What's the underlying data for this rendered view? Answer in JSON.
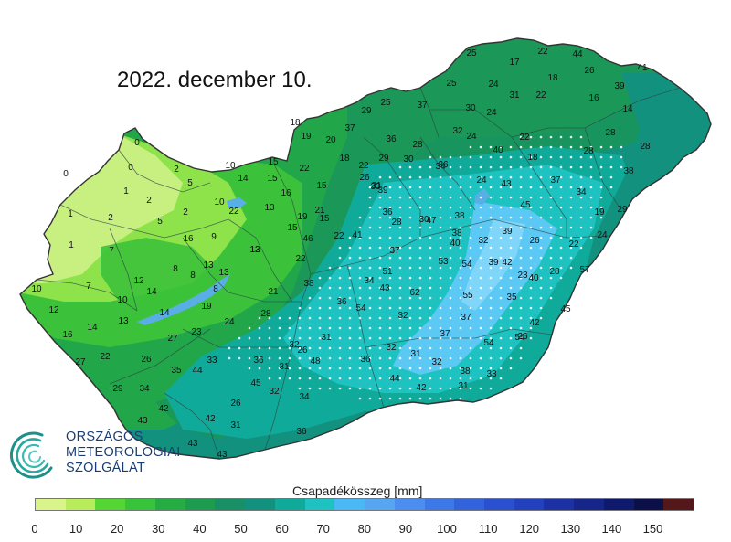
{
  "title": "2022. december 10.",
  "logo": {
    "lines": [
      "ORSZÁGOS",
      "METEOROLÓGIAI",
      "SZOLGÁLAT"
    ],
    "icon": "swirl-logo-icon",
    "color": "#1a3c73"
  },
  "legend": {
    "title": "Csapadékösszeg [mm]",
    "colors": [
      "#d8f48a",
      "#b8ec5a",
      "#54d634",
      "#37c43a",
      "#25ad43",
      "#1d9b4e",
      "#188f65",
      "#12917f",
      "#10aa9a",
      "#1ec2c0",
      "#4ab8f4",
      "#56a6f2",
      "#4b8ef0",
      "#3d78e8",
      "#3262dc",
      "#2a4fcf",
      "#2340bf",
      "#1b31a4",
      "#15258a",
      "#0f1a6c",
      "#0b1048",
      "#54181a"
    ],
    "ticks": [
      "0",
      "10",
      "20",
      "30",
      "40",
      "50",
      "60",
      "70",
      "80",
      "90",
      "100",
      "110",
      "120",
      "130",
      "140",
      "150"
    ]
  },
  "map": {
    "values": [
      "0",
      "0",
      "0",
      "1",
      "2",
      "5",
      "10",
      "15",
      "22",
      "1",
      "2",
      "2",
      "10",
      "14",
      "15",
      "16",
      "13",
      "22",
      "15",
      "1",
      "5",
      "2",
      "16",
      "9",
      "13",
      "19",
      "12",
      "15",
      "10",
      "7",
      "7",
      "12",
      "8",
      "8",
      "13",
      "10",
      "13",
      "14",
      "8",
      "21",
      "22",
      "13",
      "12",
      "14",
      "19",
      "28",
      "16",
      "14",
      "27",
      "23",
      "24",
      "22",
      "26",
      "35",
      "44",
      "33",
      "36",
      "27",
      "29",
      "34",
      "45",
      "31",
      "43",
      "42",
      "32",
      "42",
      "26",
      "26",
      "31",
      "43",
      "43",
      "36",
      "25",
      "17",
      "22",
      "44",
      "25",
      "24",
      "18",
      "26",
      "41",
      "39",
      "22",
      "25",
      "37",
      "30",
      "24",
      "31",
      "16",
      "14",
      "18",
      "19",
      "20",
      "37",
      "29",
      "24",
      "36",
      "28",
      "32",
      "34",
      "18",
      "22",
      "29",
      "30",
      "33",
      "40",
      "22",
      "18",
      "28",
      "28",
      "39",
      "36",
      "24",
      "28",
      "38",
      "34",
      "26",
      "31",
      "28",
      "43",
      "45",
      "37",
      "15",
      "21",
      "36",
      "41",
      "47",
      "38",
      "19",
      "22",
      "37",
      "40",
      "39",
      "24",
      "32",
      "42",
      "29",
      "46",
      "26",
      "30",
      "38",
      "51",
      "54",
      "39",
      "22",
      "57",
      "40",
      "34",
      "43",
      "62",
      "55",
      "23",
      "28",
      "36",
      "38",
      "53",
      "35",
      "45",
      "54",
      "32",
      "37",
      "42",
      "54",
      "32",
      "31",
      "37",
      "54",
      "48",
      "36",
      "32",
      "31",
      "32",
      "38",
      "26",
      "34",
      "44",
      "42",
      "31",
      "33"
    ],
    "colors": {
      "light": "#c8f080",
      "lightgreen": "#8ee24a",
      "green": "#3cc23a",
      "midgreen": "#22a64a",
      "darkgreen": "#1a9459",
      "tealdark": "#12917f",
      "teal": "#10aa9a",
      "cyan": "#1ec2c0",
      "lightblue": "#5cc8f4",
      "border": "#333333"
    }
  }
}
